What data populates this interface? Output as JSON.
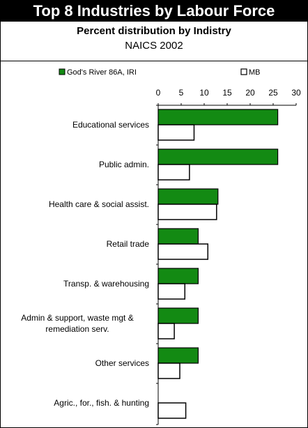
{
  "title": "Top 8 Industries by Labour Force",
  "subtitle": "Percent distribution by Indistry",
  "subtitle2": "NAICS 2002",
  "colors": {
    "series1": "#138a13",
    "series2": "#ffffff",
    "stroke": "#000000"
  },
  "chart_data": {
    "type": "bar",
    "orientation": "horizontal",
    "legend_position": "top",
    "grid": false,
    "categories": [
      "Educational services",
      "Public admin.",
      "Health care & social assist.",
      "Retail trade",
      "Transp. & warehousing",
      "Admin & support, waste mgt & remediation serv.",
      "Other services",
      "Agric., for., fish. & hunting"
    ],
    "series": [
      {
        "name": "God's River 86A, IRI",
        "values": [
          26,
          26,
          13,
          8.7,
          8.7,
          8.7,
          8.7,
          0
        ]
      },
      {
        "name": "MB",
        "values": [
          7.8,
          6.8,
          12.7,
          10.8,
          5.8,
          3.5,
          4.7,
          6.0
        ]
      }
    ],
    "xlim": [
      0,
      30
    ],
    "xticks": [
      "0",
      "5",
      "10",
      "15",
      "20",
      "25",
      "30"
    ]
  }
}
